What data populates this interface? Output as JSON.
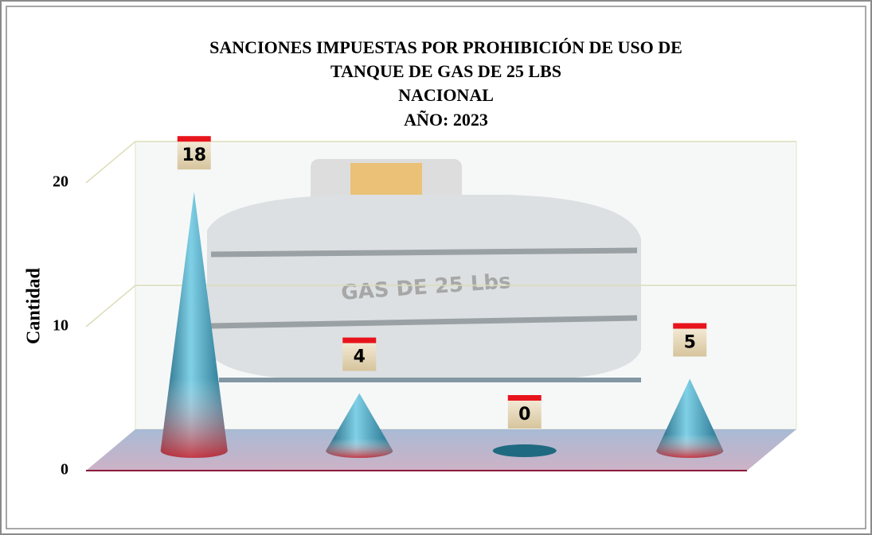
{
  "chart_data": {
    "type": "cone",
    "title": [
      "SANCIONES IMPUESTAS POR PROHIBICIÓN DE USO DE",
      "TANQUE DE GAS DE 25 LBS",
      "NACIONAL",
      "AÑO: 2023"
    ],
    "y_label": "Cantidad",
    "values": [
      18,
      4,
      0,
      5
    ],
    "color": "#3a9fb8",
    "ylim": [
      0,
      20
    ],
    "yticks": [
      0,
      10,
      20
    ],
    "grid": true
  }
}
